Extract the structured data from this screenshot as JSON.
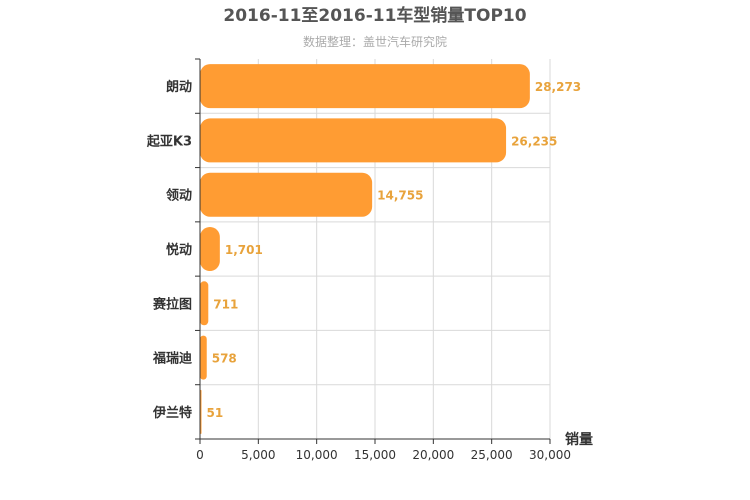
{
  "chart_data": {
    "type": "bar",
    "orientation": "horizontal",
    "title": "2016-11至2016-11车型销量TOP10",
    "subtitle": "数据整理：盖世汽车研究院",
    "xlabel": "销量",
    "ylabel": "",
    "categories": [
      "朗动",
      "起亚K3",
      "领动",
      "悦动",
      "赛拉图",
      "福瑞迪",
      "伊兰特"
    ],
    "values": [
      28273,
      26235,
      14755,
      1701,
      711,
      578,
      51
    ],
    "value_labels": [
      "28,273",
      "26,235",
      "14,755",
      "1,701",
      "711",
      "578",
      "51"
    ],
    "xlim": [
      0,
      30000
    ],
    "xticks": [
      0,
      5000,
      10000,
      15000,
      20000,
      25000,
      30000
    ],
    "xtick_labels": [
      "0",
      "5,000",
      "10,000",
      "15,000",
      "20,000",
      "25,000",
      "30,000"
    ],
    "grid": true,
    "bar_color": "#ff9c33",
    "label_color": "#e8a33c"
  }
}
